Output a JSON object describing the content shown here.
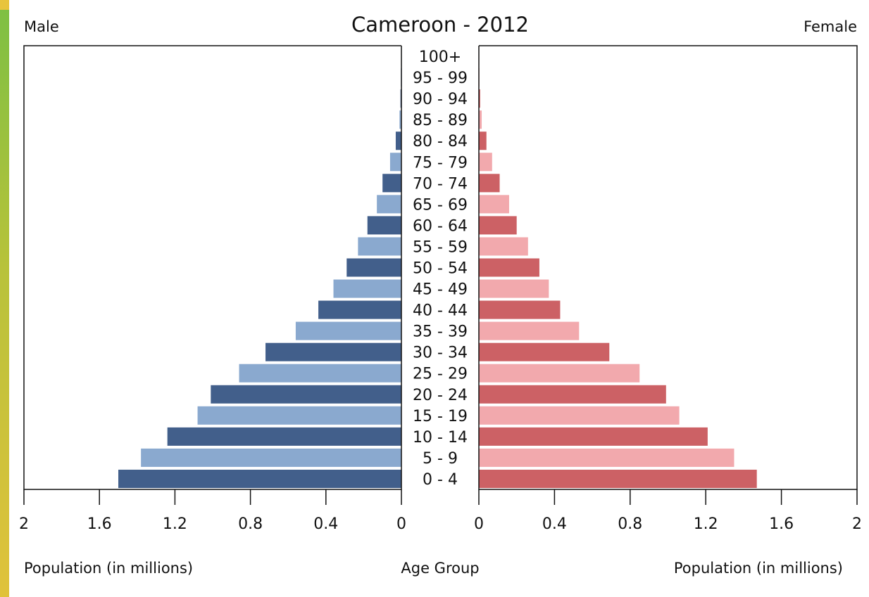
{
  "chart_data": {
    "type": "bar",
    "title": "Cameroon - 2012",
    "left_label": "Male",
    "right_label": "Female",
    "xlabel_left": "Population (in millions)",
    "xlabel_center": "Age Group",
    "xlabel_right": "Population (in millions)",
    "xlim": [
      0,
      2
    ],
    "x_ticks_left": [
      "2",
      "1.6",
      "1.2",
      "0.8",
      "0.4",
      "0"
    ],
    "x_ticks_right": [
      "0",
      "0.4",
      "0.8",
      "1.2",
      "1.6",
      "2"
    ],
    "categories": [
      "0 - 4",
      "5 - 9",
      "10 - 14",
      "15 - 19",
      "20 - 24",
      "25 - 29",
      "30 - 34",
      "35 - 39",
      "40 - 44",
      "45 - 49",
      "50 - 54",
      "55 - 59",
      "60 - 64",
      "65 - 69",
      "70 - 74",
      "75 - 79",
      "80 - 84",
      "85 - 89",
      "90 - 94",
      "95 - 99",
      "100+"
    ],
    "series": [
      {
        "name": "Male",
        "values": [
          1.5,
          1.38,
          1.24,
          1.08,
          1.01,
          0.86,
          0.72,
          0.56,
          0.44,
          0.36,
          0.29,
          0.23,
          0.18,
          0.13,
          0.1,
          0.06,
          0.03,
          0.01,
          0.005,
          0.003,
          0.002
        ],
        "colors": [
          "#425f8b",
          "#8aa9cf"
        ]
      },
      {
        "name": "Female",
        "values": [
          1.47,
          1.35,
          1.21,
          1.06,
          0.99,
          0.85,
          0.69,
          0.53,
          0.43,
          0.37,
          0.32,
          0.26,
          0.2,
          0.16,
          0.11,
          0.07,
          0.04,
          0.015,
          0.007,
          0.003,
          0.002
        ],
        "colors": [
          "#cc6165",
          "#f2a9ad"
        ]
      }
    ],
    "grid": false
  }
}
